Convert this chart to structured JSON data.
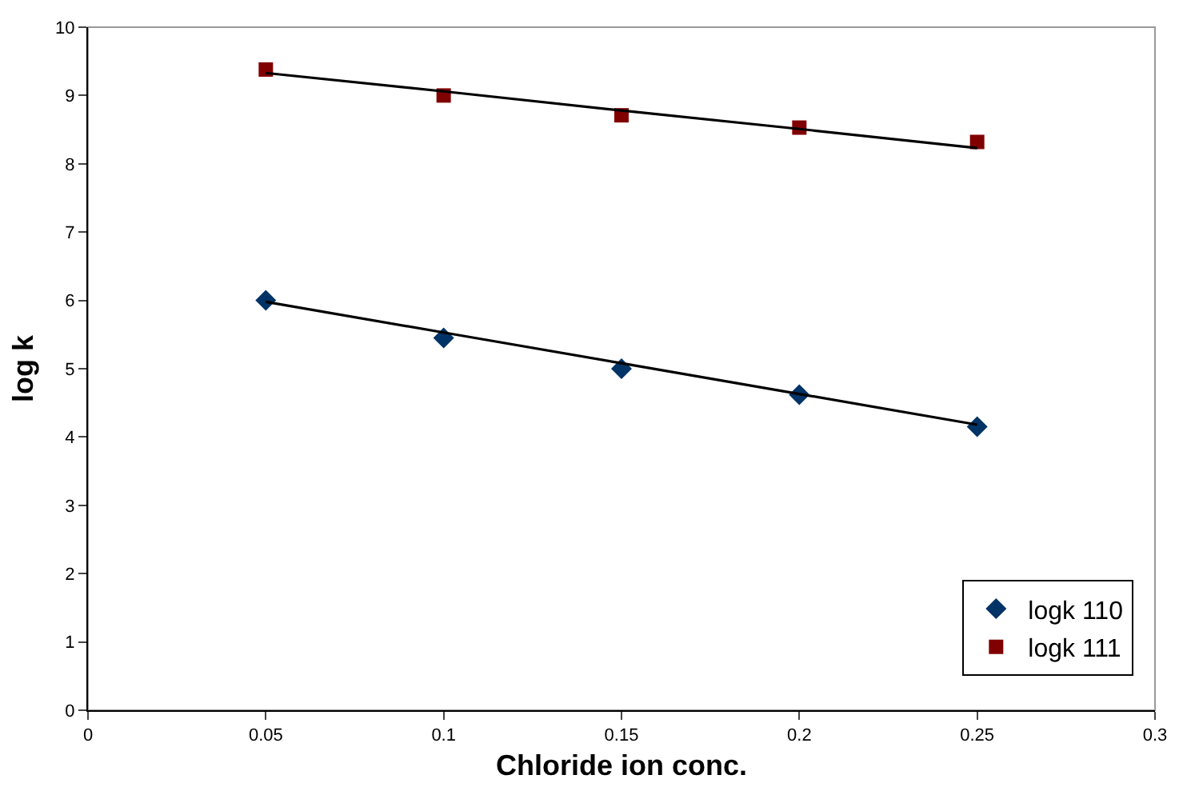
{
  "chart_data": {
    "type": "scatter",
    "xlabel": "Chloride ion conc.",
    "ylabel": "log k",
    "x": [
      0.05,
      0.1,
      0.15,
      0.2,
      0.25
    ],
    "series": [
      {
        "name": "logk 110",
        "color": "#003366",
        "marker": "diamond",
        "values": [
          6.0,
          5.45,
          5.0,
          4.62,
          4.15
        ]
      },
      {
        "name": "logk 111",
        "color": "#800000",
        "marker": "square",
        "values": [
          9.38,
          9.0,
          8.71,
          8.53,
          8.32
        ]
      },
      {
        "type": "line",
        "color": "#000000",
        "marker": "none",
        "values": [
          5.98,
          5.53,
          5.08,
          4.63,
          4.18
        ]
      },
      {
        "type": "line",
        "color": "#000000",
        "marker": "none",
        "values": [
          9.33,
          9.06,
          8.78,
          8.51,
          8.23
        ]
      }
    ],
    "xlim": [
      0,
      0.3
    ],
    "xticks": [
      0,
      0.05,
      0.1,
      0.15,
      0.2,
      0.25,
      0.3
    ],
    "ylim": [
      0,
      10
    ],
    "yticks": [
      0,
      1,
      2,
      3,
      4,
      5,
      6,
      7,
      8,
      9,
      10
    ],
    "grid": false,
    "legend": "bottom right"
  }
}
